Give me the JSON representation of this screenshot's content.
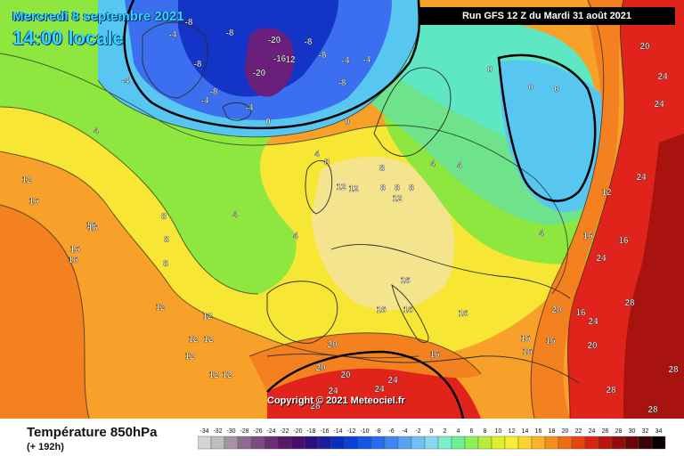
{
  "header": {
    "date": "Mercredi 8 septembre 2021",
    "local_time": "14:00 locale",
    "run": "Run GFS 12 Z du Mardi 31 août 2021"
  },
  "copyright": "Copyright © 2021 Meteociel.fr",
  "variable": {
    "title": "Température 850hPa",
    "lead": "(+ 192h)"
  },
  "legend": {
    "steps": [
      "-34",
      "-32",
      "-30",
      "-28",
      "-26",
      "-24",
      "-22",
      "-20",
      "-18",
      "-16",
      "-14",
      "-12",
      "-10",
      "-8",
      "-6",
      "-4",
      "-2",
      "0",
      "2",
      "4",
      "6",
      "8",
      "10",
      "12",
      "14",
      "16",
      "18",
      "20",
      "22",
      "24",
      "26",
      "28",
      "30",
      "32",
      "34"
    ],
    "colors": [
      "#d4d4d4",
      "#bdbdbd",
      "#a693a6",
      "#8e6b8e",
      "#7a4c7f",
      "#6c2f74",
      "#5a1868",
      "#4a0d6b",
      "#2a0f82",
      "#1a1f9a",
      "#0a2fc0",
      "#0a40d8",
      "#1454e6",
      "#2a6af0",
      "#3f86f2",
      "#58a2f3",
      "#72c0f4",
      "#8ad8f0",
      "#7af0c8",
      "#6cf094",
      "#8cf05c",
      "#b6ec3c",
      "#dcee2c",
      "#f8ee34",
      "#fbd52c",
      "#f9b324",
      "#f58f1c",
      "#ef6a14",
      "#e6430f",
      "#d8230f",
      "#b8150c",
      "#920c0a",
      "#6a0606",
      "#3a0202",
      "#0a0000"
    ]
  },
  "map": {
    "colors": {
      "sea_orange": "#f7a12a",
      "orange_deep": "#f3811f",
      "yellow": "#f7e734",
      "pale_yellow": "#f4e48e",
      "green": "#8ee73e",
      "light_green": "#6fe38b",
      "teal": "#5fe6c3",
      "cyan": "#57c7f1",
      "blue": "#3b6ff0",
      "dark_blue": "#1434c8",
      "purple": "#6a1f7a",
      "red": "#e0241b",
      "dark_red": "#a8120f",
      "coast": "#2a2a2a"
    },
    "labels": [
      {
        "text": "-8"
      },
      {
        "text": "-8"
      },
      {
        "text": "-8"
      },
      {
        "text": "-8"
      },
      {
        "text": "-8"
      },
      {
        "text": "-8"
      },
      {
        "text": "-8"
      },
      {
        "text": "-20"
      },
      {
        "text": "-20"
      },
      {
        "text": "-16"
      },
      {
        "text": "12"
      },
      {
        "text": "-4"
      },
      {
        "text": "-4"
      },
      {
        "text": "-4"
      },
      {
        "text": "-4"
      },
      {
        "text": "-4"
      },
      {
        "text": "-4"
      },
      {
        "text": "0"
      },
      {
        "text": "0"
      },
      {
        "text": "0"
      },
      {
        "text": "0"
      },
      {
        "text": "0"
      },
      {
        "text": "4"
      },
      {
        "text": "4"
      },
      {
        "text": "4"
      },
      {
        "text": "4"
      },
      {
        "text": "4"
      },
      {
        "text": "4"
      },
      {
        "text": "4"
      },
      {
        "text": "8"
      },
      {
        "text": "8"
      },
      {
        "text": "8"
      },
      {
        "text": "8"
      },
      {
        "text": "8"
      },
      {
        "text": "8"
      },
      {
        "text": "8"
      },
      {
        "text": "8"
      },
      {
        "text": "12"
      },
      {
        "text": "12"
      },
      {
        "text": "12"
      },
      {
        "text": "12"
      },
      {
        "text": "12"
      },
      {
        "text": "12"
      },
      {
        "text": "12"
      },
      {
        "text": "12"
      },
      {
        "text": "12"
      },
      {
        "text": "12"
      },
      {
        "text": "12"
      },
      {
        "text": "12"
      },
      {
        "text": "16"
      },
      {
        "text": "16"
      },
      {
        "text": "16"
      },
      {
        "text": "16"
      },
      {
        "text": "16"
      },
      {
        "text": "16"
      },
      {
        "text": "16"
      },
      {
        "text": "16"
      },
      {
        "text": "16"
      },
      {
        "text": "16"
      },
      {
        "text": "16"
      },
      {
        "text": "16"
      },
      {
        "text": "16"
      },
      {
        "text": "16"
      },
      {
        "text": "16"
      },
      {
        "text": "16"
      },
      {
        "text": "20"
      },
      {
        "text": "20"
      },
      {
        "text": "20"
      },
      {
        "text": "20"
      },
      {
        "text": "20"
      },
      {
        "text": "20"
      },
      {
        "text": "24"
      },
      {
        "text": "24"
      },
      {
        "text": "24"
      },
      {
        "text": "24"
      },
      {
        "text": "24"
      },
      {
        "text": "24"
      },
      {
        "text": "24"
      },
      {
        "text": "24"
      },
      {
        "text": "28"
      },
      {
        "text": "28"
      },
      {
        "text": "28"
      },
      {
        "text": "28"
      },
      {
        "text": "28"
      },
      {
        "text": "28"
      }
    ]
  }
}
